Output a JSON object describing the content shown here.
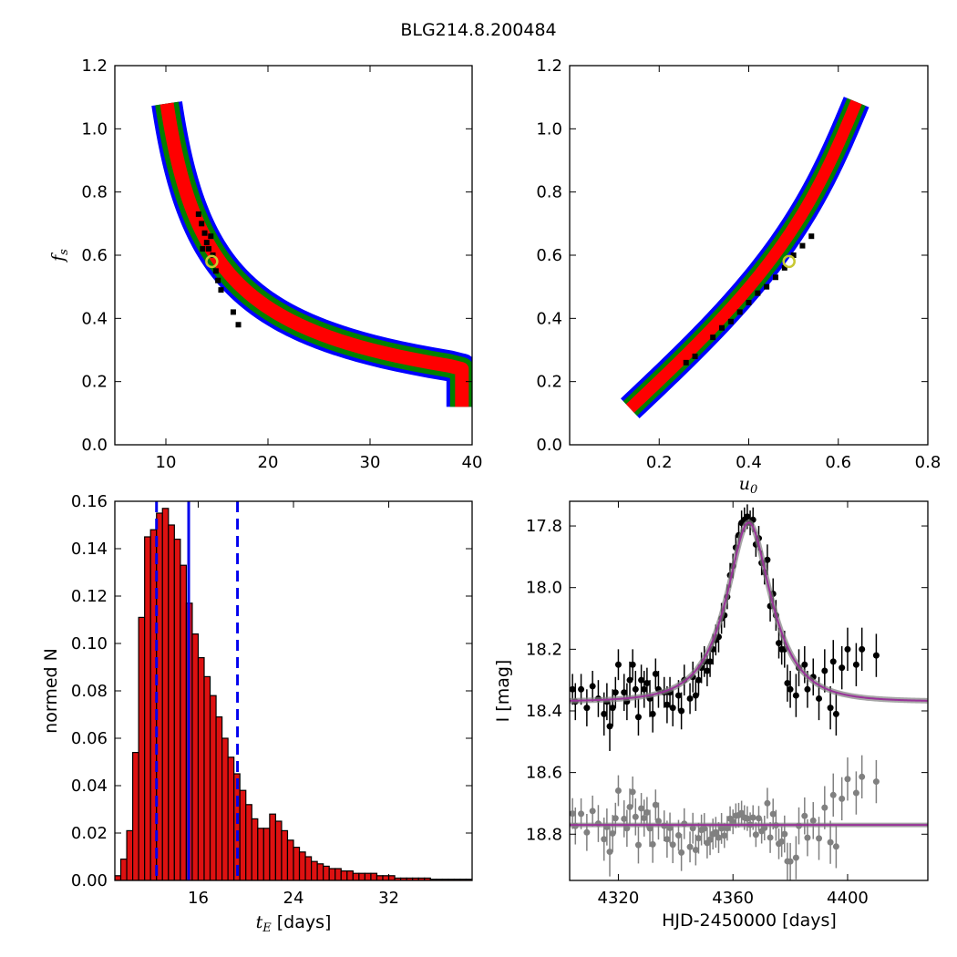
{
  "title": "BLG214.8.200484",
  "colors": {
    "inner": "#ff0000",
    "mid": "#008000",
    "outer": "#0000ff",
    "best": "#000000",
    "marker": "#c8c832",
    "hist": "#dd1111",
    "model": "#993399",
    "resid": "#808080"
  },
  "chart_data": [
    {
      "type": "heatmap",
      "panel": "top-left",
      "xlabel": "",
      "ylabel": "f_s",
      "xlim": [
        5,
        40
      ],
      "ylim": [
        0,
        1.2
      ],
      "xticks": [
        "10",
        "20",
        "30",
        "40"
      ],
      "yticks": [
        "0.0",
        "0.2",
        "0.4",
        "0.6",
        "0.8",
        "1.0",
        "1.2"
      ],
      "levels": [
        "inner",
        "mid",
        "outer",
        "best"
      ],
      "best_fit": [
        14.5,
        0.58
      ]
    },
    {
      "type": "heatmap",
      "panel": "top-right",
      "xlabel": "u_0",
      "ylabel": "",
      "xlim": [
        0,
        0.8
      ],
      "ylim": [
        0,
        1.2
      ],
      "xticks": [
        "0.2",
        "0.4",
        "0.6",
        "0.8"
      ],
      "yticks": [
        "0.0",
        "0.2",
        "0.4",
        "0.6",
        "0.8",
        "1.0",
        "1.2"
      ],
      "levels": [
        "inner",
        "mid",
        "outer",
        "best"
      ],
      "best_fit": [
        0.49,
        0.58
      ]
    },
    {
      "type": "bar",
      "panel": "bottom-left",
      "xlabel": "t_E [days]",
      "xlabel_sym": "t",
      "xlabel_sub": "E",
      "xlabel_unit": "[days]",
      "ylabel": "normed N",
      "xlim": [
        9,
        39
      ],
      "ylim": [
        0,
        0.16
      ],
      "xticks": [
        "16",
        "24",
        "32"
      ],
      "yticks": [
        "0.00",
        "0.02",
        "0.04",
        "0.06",
        "0.08",
        "0.10",
        "0.12",
        "0.14",
        "0.16"
      ],
      "bin_start": 9,
      "bin_width": 0.5,
      "values": [
        0.002,
        0.009,
        0.021,
        0.054,
        0.111,
        0.145,
        0.148,
        0.155,
        0.157,
        0.15,
        0.144,
        0.133,
        0.117,
        0.104,
        0.094,
        0.086,
        0.078,
        0.069,
        0.06,
        0.052,
        0.045,
        0.038,
        0.032,
        0.026,
        0.022,
        0.022,
        0.028,
        0.025,
        0.021,
        0.017,
        0.014,
        0.012,
        0.01,
        0.008,
        0.007,
        0.006,
        0.005,
        0.005,
        0.004,
        0.004,
        0.003,
        0.003,
        0.003,
        0.003,
        0.002,
        0.002,
        0.002,
        0.001,
        0.001,
        0.001,
        0.001,
        0.001,
        0.001,
        0.0005,
        0.0005,
        0.0005,
        0.0005,
        0.0005,
        0.0005,
        0.0005
      ],
      "vlines": [
        {
          "x": 15.2,
          "style": "solid"
        },
        {
          "x": 12.5,
          "style": "dashed"
        },
        {
          "x": 19.3,
          "style": "dashed"
        }
      ]
    },
    {
      "type": "scatter",
      "panel": "bottom-right",
      "xlabel": "HJD-2450000 [days]",
      "ylabel": "I [mag]",
      "xlim": [
        4303,
        4428
      ],
      "ylim": [
        18.95,
        17.72
      ],
      "xticks": [
        "4320",
        "4360",
        "4400"
      ],
      "yticks": [
        "17.8",
        "18.0",
        "18.2",
        "18.4",
        "18.6",
        "18.8"
      ],
      "model": {
        "base": 18.37,
        "t0": 4365.5,
        "u0": 0.49,
        "tE": 14.5,
        "fs": 0.58,
        "resid_level": 18.77
      },
      "data": [
        {
          "t": 4304,
          "m": 18.33,
          "e": 0.05
        },
        {
          "t": 4305,
          "m": 18.37,
          "e": 0.06
        },
        {
          "t": 4307,
          "m": 18.33,
          "e": 0.05
        },
        {
          "t": 4309,
          "m": 18.39,
          "e": 0.06
        },
        {
          "t": 4311,
          "m": 18.32,
          "e": 0.05
        },
        {
          "t": 4313,
          "m": 18.36,
          "e": 0.06
        },
        {
          "t": 4315,
          "m": 18.41,
          "e": 0.07
        },
        {
          "t": 4316,
          "m": 18.37,
          "e": 0.06
        },
        {
          "t": 4317,
          "m": 18.45,
          "e": 0.08
        },
        {
          "t": 4318,
          "m": 18.39,
          "e": 0.06
        },
        {
          "t": 4319,
          "m": 18.34,
          "e": 0.05
        },
        {
          "t": 4320,
          "m": 18.25,
          "e": 0.05
        },
        {
          "t": 4322,
          "m": 18.34,
          "e": 0.06
        },
        {
          "t": 4323,
          "m": 18.37,
          "e": 0.06
        },
        {
          "t": 4324,
          "m": 18.3,
          "e": 0.06
        },
        {
          "t": 4325,
          "m": 18.25,
          "e": 0.05
        },
        {
          "t": 4326,
          "m": 18.33,
          "e": 0.06
        },
        {
          "t": 4327,
          "m": 18.42,
          "e": 0.06
        },
        {
          "t": 4328,
          "m": 18.3,
          "e": 0.05
        },
        {
          "t": 4329,
          "m": 18.33,
          "e": 0.06
        },
        {
          "t": 4330,
          "m": 18.31,
          "e": 0.05
        },
        {
          "t": 4331,
          "m": 18.36,
          "e": 0.06
        },
        {
          "t": 4332,
          "m": 18.41,
          "e": 0.06
        },
        {
          "t": 4333,
          "m": 18.28,
          "e": 0.05
        },
        {
          "t": 4334,
          "m": 18.33,
          "e": 0.06
        },
        {
          "t": 4336,
          "m": 18.34,
          "e": 0.05
        },
        {
          "t": 4337,
          "m": 18.38,
          "e": 0.06
        },
        {
          "t": 4338,
          "m": 18.34,
          "e": 0.05
        },
        {
          "t": 4339,
          "m": 18.39,
          "e": 0.06
        },
        {
          "t": 4341,
          "m": 18.35,
          "e": 0.05
        },
        {
          "t": 4342,
          "m": 18.4,
          "e": 0.06
        },
        {
          "t": 4343,
          "m": 18.3,
          "e": 0.05
        },
        {
          "t": 4345,
          "m": 18.36,
          "e": 0.05
        },
        {
          "t": 4346,
          "m": 18.29,
          "e": 0.05
        },
        {
          "t": 4347,
          "m": 18.35,
          "e": 0.05
        },
        {
          "t": 4348,
          "m": 18.3,
          "e": 0.05
        },
        {
          "t": 4349,
          "m": 18.26,
          "e": 0.05
        },
        {
          "t": 4350,
          "m": 18.24,
          "e": 0.05
        },
        {
          "t": 4351,
          "m": 18.27,
          "e": 0.05
        },
        {
          "t": 4352,
          "m": 18.24,
          "e": 0.05
        },
        {
          "t": 4353,
          "m": 18.2,
          "e": 0.05
        },
        {
          "t": 4354,
          "m": 18.17,
          "e": 0.05
        },
        {
          "t": 4355,
          "m": 18.16,
          "e": 0.05
        },
        {
          "t": 4356,
          "m": 18.1,
          "e": 0.05
        },
        {
          "t": 4357,
          "m": 18.09,
          "e": 0.04
        },
        {
          "t": 4358,
          "m": 18.03,
          "e": 0.04
        },
        {
          "t": 4359,
          "m": 17.96,
          "e": 0.04
        },
        {
          "t": 4360,
          "m": 17.93,
          "e": 0.04
        },
        {
          "t": 4361,
          "m": 17.87,
          "e": 0.04
        },
        {
          "t": 4362,
          "m": 17.83,
          "e": 0.04
        },
        {
          "t": 4363,
          "m": 17.79,
          "e": 0.04
        },
        {
          "t": 4364,
          "m": 17.78,
          "e": 0.04
        },
        {
          "t": 4365,
          "m": 17.77,
          "e": 0.04
        },
        {
          "t": 4366,
          "m": 17.79,
          "e": 0.04
        },
        {
          "t": 4367,
          "m": 17.78,
          "e": 0.04
        },
        {
          "t": 4368,
          "m": 17.86,
          "e": 0.04
        },
        {
          "t": 4369,
          "m": 17.84,
          "e": 0.04
        },
        {
          "t": 4370,
          "m": 17.92,
          "e": 0.04
        },
        {
          "t": 4371,
          "m": 17.95,
          "e": 0.04
        },
        {
          "t": 4372,
          "m": 17.91,
          "e": 0.05
        },
        {
          "t": 4373,
          "m": 18.06,
          "e": 0.05
        },
        {
          "t": 4374,
          "m": 18.02,
          "e": 0.05
        },
        {
          "t": 4375,
          "m": 18.09,
          "e": 0.05
        },
        {
          "t": 4376,
          "m": 18.18,
          "e": 0.05
        },
        {
          "t": 4377,
          "m": 18.2,
          "e": 0.05
        },
        {
          "t": 4378,
          "m": 18.2,
          "e": 0.06
        },
        {
          "t": 4379,
          "m": 18.31,
          "e": 0.06
        },
        {
          "t": 4380,
          "m": 18.33,
          "e": 0.06
        },
        {
          "t": 4382,
          "m": 18.35,
          "e": 0.07
        },
        {
          "t": 4383,
          "m": 18.26,
          "e": 0.06
        },
        {
          "t": 4385,
          "m": 18.25,
          "e": 0.06
        },
        {
          "t": 4386,
          "m": 18.33,
          "e": 0.06
        },
        {
          "t": 4388,
          "m": 18.29,
          "e": 0.06
        },
        {
          "t": 4390,
          "m": 18.36,
          "e": 0.07
        },
        {
          "t": 4392,
          "m": 18.27,
          "e": 0.07
        },
        {
          "t": 4394,
          "m": 18.39,
          "e": 0.07
        },
        {
          "t": 4395,
          "m": 18.24,
          "e": 0.07
        },
        {
          "t": 4396,
          "m": 18.41,
          "e": 0.07
        },
        {
          "t": 4398,
          "m": 18.26,
          "e": 0.07
        },
        {
          "t": 4400,
          "m": 18.2,
          "e": 0.07
        },
        {
          "t": 4403,
          "m": 18.25,
          "e": 0.07
        },
        {
          "t": 4405,
          "m": 18.2,
          "e": 0.07
        },
        {
          "t": 4410,
          "m": 18.22,
          "e": 0.07
        }
      ]
    }
  ]
}
